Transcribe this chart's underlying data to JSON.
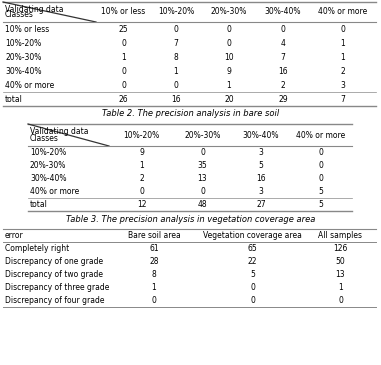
{
  "table2": {
    "caption": "Table 2. The precision analysis in bare soil",
    "corner_label1": "Validating data",
    "corner_label2": "Classes",
    "col_headers": [
      "10% or less",
      "10%-20%",
      "20%-30%",
      "30%-40%",
      "40% or more"
    ],
    "row_headers": [
      "10% or less",
      "10%-20%",
      "20%-30%",
      "30%-40%",
      "40% or more",
      "total"
    ],
    "data": [
      [
        25,
        0,
        0,
        0,
        0
      ],
      [
        0,
        7,
        0,
        4,
        1
      ],
      [
        1,
        8,
        10,
        7,
        1
      ],
      [
        0,
        1,
        9,
        16,
        2
      ],
      [
        0,
        0,
        1,
        2,
        3
      ],
      [
        26,
        16,
        20,
        29,
        7
      ]
    ]
  },
  "table3": {
    "caption": "Table 3. The precision analysis in vegetation coverage area",
    "corner_label1": "Validating data",
    "corner_label2": "Classes",
    "col_headers": [
      "10%-20%",
      "20%-30%",
      "30%-40%",
      "40% or more"
    ],
    "row_headers": [
      "10%-20%",
      "20%-30%",
      "30%-40%",
      "40% or more",
      "total"
    ],
    "data": [
      [
        9,
        0,
        3,
        0
      ],
      [
        1,
        35,
        5,
        0
      ],
      [
        2,
        13,
        16,
        0
      ],
      [
        0,
        0,
        3,
        5
      ],
      [
        12,
        48,
        27,
        5
      ]
    ]
  },
  "table4": {
    "col_headers": [
      "error",
      "Bare soil area",
      "Vegetation coverage area",
      "All samples"
    ],
    "data": [
      [
        "Completely right",
        "61",
        "65",
        "126"
      ],
      [
        "Discrepancy of one grade",
        "28",
        "22",
        "50"
      ],
      [
        "Discrepancy of two grade",
        "8",
        "5",
        "13"
      ],
      [
        "Discrepancy of three grade",
        "1",
        "0",
        "1"
      ],
      [
        "Discrepancy of four grade",
        "0",
        "0",
        "0"
      ]
    ]
  },
  "bg_color": "#ffffff",
  "text_color": "#000000",
  "line_color": "#888888",
  "font_size": 6.0
}
